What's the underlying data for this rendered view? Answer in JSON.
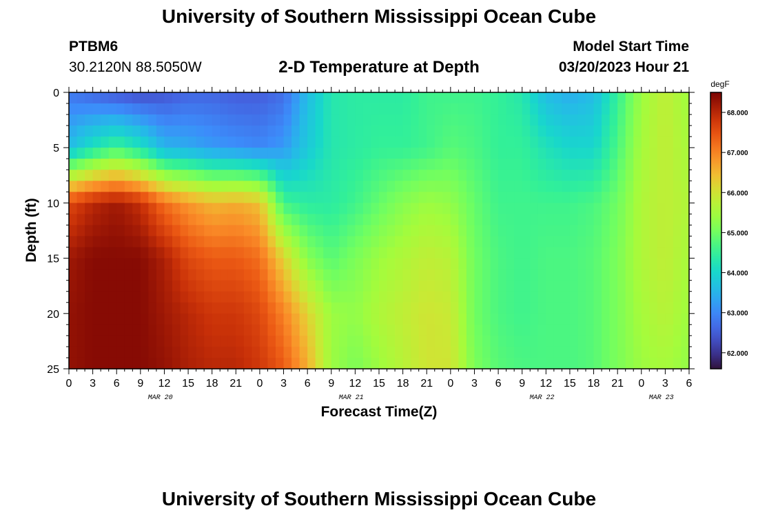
{
  "header": {
    "title": "University of Southern Mississippi Ocean Cube",
    "station_id": "PTBM6",
    "coordinates": "30.2120N  88.5050W",
    "plot_title": "2-D Temperature at Depth",
    "start_label": "Model Start Time",
    "start_value": "03/20/2023 Hour 21"
  },
  "footer": {
    "title": "University of Southern Mississippi Ocean Cube"
  },
  "chart_data": {
    "type": "heatmap",
    "title": "2-D Temperature at Depth",
    "xlabel": "Forecast Time(Z)",
    "ylabel": "Depth (ft)",
    "units": "degF",
    "colormap": "turbo",
    "x_hours_range": [
      0,
      78
    ],
    "y_range": [
      0,
      25
    ],
    "y_inverted": true,
    "color_range": [
      61.6,
      68.5
    ],
    "x_tick_labels": [
      "0",
      "3",
      "6",
      "9",
      "12",
      "15",
      "18",
      "21",
      "0",
      "3",
      "6",
      "9",
      "12",
      "15",
      "18",
      "21",
      "0",
      "3",
      "6",
      "9",
      "12",
      "15",
      "18",
      "21",
      "0",
      "3",
      "6"
    ],
    "y_tick_labels": [
      "0",
      "5",
      "10",
      "15",
      "20",
      "25"
    ],
    "date_labels": [
      {
        "text": "MAR 20",
        "at_hour": 11.5
      },
      {
        "text": "MAR 21",
        "at_hour": 35.5
      },
      {
        "text": "MAR 22",
        "at_hour": 59.5
      },
      {
        "text": "MAR 23",
        "at_hour": 74.5
      }
    ],
    "colorbar_ticks": [
      "62.000",
      "63.000",
      "64.000",
      "65.000",
      "66.000",
      "67.000",
      "68.000"
    ],
    "colorbar_tick_values": [
      62,
      63,
      64,
      65,
      66,
      67,
      68
    ],
    "depths_ft": [
      0,
      5,
      10,
      15,
      20,
      25
    ],
    "profile_hours": [
      0,
      3,
      6,
      9,
      12,
      15,
      18,
      21,
      24,
      27,
      30,
      33,
      36,
      39,
      42,
      45,
      48,
      51,
      54,
      57,
      60,
      63,
      66,
      69,
      72,
      75,
      78
    ],
    "profiles_degF": [
      [
        62.8,
        63.6,
        67.6,
        68.2,
        68.3,
        68.3
      ],
      [
        62.6,
        64.2,
        68.0,
        68.4,
        68.4,
        68.4
      ],
      [
        62.4,
        64.6,
        68.2,
        68.4,
        68.4,
        68.4
      ],
      [
        62.3,
        64.2,
        67.9,
        68.4,
        68.4,
        68.4
      ],
      [
        62.4,
        63.5,
        67.2,
        68.1,
        68.2,
        68.3
      ],
      [
        62.6,
        63.4,
        66.8,
        67.6,
        68.0,
        68.1
      ],
      [
        62.6,
        63.2,
        66.5,
        67.4,
        67.8,
        68.0
      ],
      [
        62.5,
        63.1,
        66.6,
        67.4,
        67.8,
        68.0
      ],
      [
        62.5,
        63.0,
        66.4,
        67.2,
        67.6,
        67.8
      ],
      [
        62.7,
        63.2,
        64.6,
        66.2,
        67.0,
        67.4
      ],
      [
        63.6,
        63.8,
        64.4,
        65.2,
        66.2,
        66.6
      ],
      [
        64.3,
        64.3,
        64.4,
        64.8,
        65.4,
        65.4
      ],
      [
        64.4,
        64.4,
        64.6,
        65.1,
        65.3,
        65.1
      ],
      [
        64.4,
        64.5,
        64.9,
        65.4,
        65.6,
        65.4
      ],
      [
        64.4,
        64.5,
        65.2,
        65.6,
        65.8,
        65.7
      ],
      [
        64.6,
        64.6,
        65.4,
        65.8,
        66.0,
        66.0
      ],
      [
        64.6,
        64.8,
        65.3,
        65.7,
        65.9,
        66.0
      ],
      [
        64.6,
        64.7,
        64.9,
        65.0,
        65.0,
        65.1
      ],
      [
        64.5,
        64.5,
        64.6,
        64.7,
        64.7,
        64.8
      ],
      [
        64.3,
        64.5,
        64.6,
        64.6,
        64.6,
        64.7
      ],
      [
        63.6,
        64.2,
        64.6,
        64.7,
        64.7,
        64.7
      ],
      [
        63.4,
        64.0,
        64.6,
        64.7,
        64.7,
        64.7
      ],
      [
        63.6,
        64.0,
        64.7,
        64.8,
        64.8,
        64.8
      ],
      [
        64.5,
        64.7,
        65.0,
        65.1,
        65.1,
        65.1
      ],
      [
        65.4,
        65.5,
        65.6,
        65.6,
        65.5,
        65.4
      ],
      [
        65.8,
        65.8,
        65.8,
        65.8,
        65.7,
        65.5
      ],
      [
        65.4,
        65.5,
        65.6,
        65.5,
        65.4,
        65.3
      ]
    ]
  }
}
